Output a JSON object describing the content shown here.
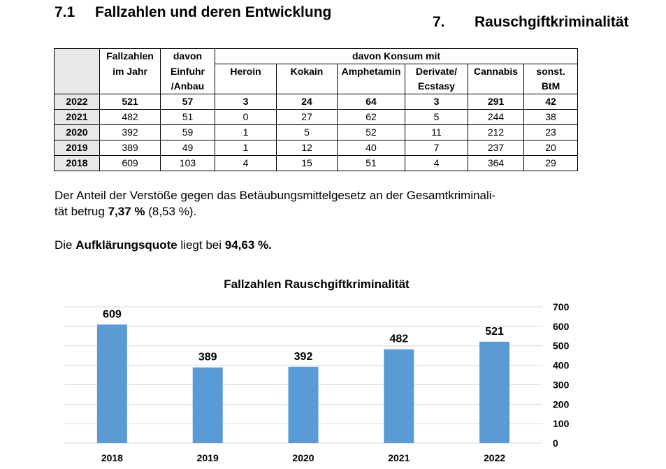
{
  "heading_section": {
    "number": "7.1",
    "text": "Fallzahlen und deren Entwicklung"
  },
  "heading_chapter": {
    "number": "7.",
    "text": "Rauschgiftkriminalität"
  },
  "table": {
    "header": {
      "fallzahlen": [
        "Fallzahlen",
        "im Jahr"
      ],
      "einfuhr": [
        "davon",
        "Einfuhr",
        "/Anbau"
      ],
      "konsum": "davon Konsum mit",
      "heroin": "Heroin",
      "kokain": "Kokain",
      "amphetamin": "Amphetamin",
      "derivate": [
        "Derivate/",
        "Ecstasy"
      ],
      "cannabis": "Cannabis",
      "sonst": [
        "sonst.",
        "BtM"
      ]
    },
    "rows": [
      {
        "year": "2022",
        "cells": [
          "521",
          "57",
          "3",
          "24",
          "64",
          "3",
          "291",
          "42"
        ]
      },
      {
        "year": "2021",
        "cells": [
          "482",
          "51",
          "0",
          "27",
          "62",
          "5",
          "244",
          "38"
        ]
      },
      {
        "year": "2020",
        "cells": [
          "392",
          "59",
          "1",
          "5",
          "52",
          "11",
          "212",
          "23"
        ]
      },
      {
        "year": "2019",
        "cells": [
          "389",
          "49",
          "1",
          "12",
          "40",
          "7",
          "237",
          "20"
        ]
      },
      {
        "year": "2018",
        "cells": [
          "609",
          "103",
          "4",
          "15",
          "51",
          "4",
          "364",
          "29"
        ]
      }
    ]
  },
  "paragraph1": {
    "line1": "Der Anteil der Verstöße gegen das Betäubungsmittelgesetz an der Gesamtkriminali-",
    "line2_pre": "tät betrug ",
    "value": "7,37 %",
    "line2_post": " (8,53 %)."
  },
  "paragraph2": {
    "pre": "Die ",
    "term": "Aufklärungsquote",
    "mid": " liegt bei ",
    "value": "94,63 %."
  },
  "chart_data": {
    "type": "bar",
    "title": "Fallzahlen Rauschgiftkriminalität",
    "categories": [
      "2018",
      "2019",
      "2020",
      "2021",
      "2022"
    ],
    "values": [
      609,
      389,
      392,
      482,
      521
    ],
    "ylim": [
      0,
      700
    ],
    "yticks": [
      "0",
      "100",
      "200",
      "300",
      "400",
      "500",
      "600",
      "700"
    ],
    "grid": true,
    "y_axis_side": "right",
    "bar_color": "#5b9bd5",
    "grid_color": "#d9d9d9"
  }
}
